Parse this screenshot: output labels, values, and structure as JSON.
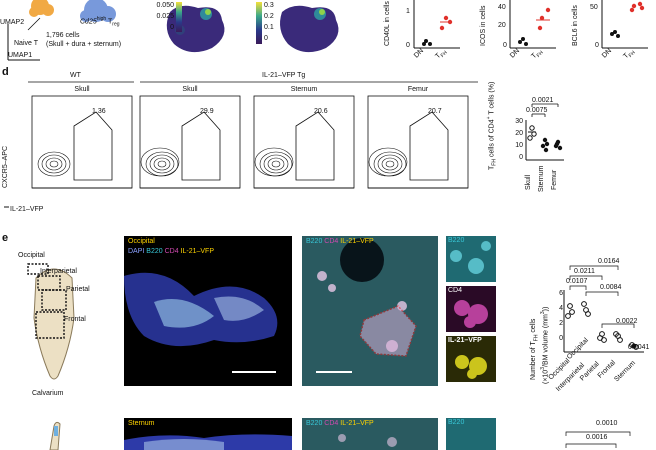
{
  "top": {
    "umap_labels": {
      "umap2": "UMAP2",
      "umap1": "UMAP1",
      "naive": "Naive T",
      "cd25": "Cd25",
      "cd25_sup": "high",
      "treg": " T",
      "treg_sub": "reg",
      "cells": "1,796 cells",
      "tissues": "(Skull + dura + sternum)"
    },
    "scale1": [
      "0.050",
      "0.025",
      "0"
    ],
    "scale2": [
      "0.3",
      "0.2",
      "0.1",
      "0"
    ],
    "dot_plots": [
      {
        "ylabel": "CD40L in cells",
        "yticks": [
          "1",
          "0"
        ],
        "xticks": [
          "DN",
          "T"
        ],
        "xsub": "FH"
      },
      {
        "ylabel": "ICOS in cells",
        "yticks": [
          "40",
          "20",
          "0"
        ],
        "xticks": [
          "DN",
          "T"
        ],
        "xsub": "FH"
      },
      {
        "ylabel": "BCL6 in cells",
        "yticks": [
          "50",
          "0"
        ],
        "xticks": [
          "DN",
          "T"
        ],
        "xsub": "FH"
      }
    ]
  },
  "d": {
    "letter": "d",
    "wt": "WT",
    "tg": "IL-21–VFP Tg",
    "ylabel": "CXCR5–APC",
    "xlabel": "IL-21–VFP",
    "panels": [
      {
        "title": "Skull",
        "pct": "1.36"
      },
      {
        "title": "Skull",
        "pct": "29.9"
      },
      {
        "title": "Sternum",
        "pct": "20.6"
      },
      {
        "title": "Femur",
        "pct": "20.7"
      }
    ],
    "yticks": [
      "10",
      "10",
      "10",
      "10",
      "10",
      "0",
      "−10"
    ],
    "ysup": [
      "7",
      "6",
      "5",
      "4",
      "3",
      "",
      "4"
    ],
    "xticks": [
      "−10",
      "0",
      "10",
      "10",
      "10",
      "10",
      "10"
    ],
    "xsup": [
      "4",
      "",
      "4",
      "5",
      "6",
      "7"
    ],
    "stats": {
      "ylabel": "T",
      "ylabel_sub": "FH",
      "ylabel_rest": " cells of CD4",
      "ylabel_sup": "+",
      "ylabel_end": " T cells (%)",
      "yticks": [
        "30",
        "20",
        "10",
        "0"
      ],
      "pvals": [
        "0.0021",
        "0.0075"
      ],
      "categories": [
        "Skull",
        "Sternum",
        "Femur"
      ]
    }
  },
  "e": {
    "letter": "e",
    "skull_labels": [
      "Occipital",
      "Interparietal",
      "Parietal",
      "Frontal",
      "Calvarium"
    ],
    "micro1": {
      "title": "Occipital",
      "channels": [
        "DAPI",
        " B220",
        " CD4",
        " IL-21–VFP"
      ]
    },
    "micro2": {
      "channels": [
        "B220",
        " CD4",
        " IL-21–VFP"
      ]
    },
    "side_panels": [
      "B220",
      "CD4",
      "IL-21–VFP"
    ],
    "stats": {
      "ylabel1": "Number of T",
      "ylabel1_sub": "FH",
      "ylabel1_end": " cells",
      "ylabel2": "(×10",
      "ylabel2_sup": "3",
      "ylabel2_mid": "/BM volume (mm",
      "ylabel2_sup2": "3",
      "ylabel2_end": "))",
      "yticks": [
        "6",
        "4",
        "2",
        "0"
      ],
      "pvals": [
        "0.0164",
        "0.0211",
        "0.0107",
        "0.0084",
        "0.0022",
        "0.0041"
      ],
      "categories": [
        "Occipital",
        "Interparietal",
        "Parietal",
        "Frontal",
        "Sternum"
      ]
    }
  },
  "bottom": {
    "micro_title": "Sternum",
    "channels": [
      "B220",
      " CD4",
      " IL-21–VFP"
    ],
    "side": "B220",
    "pvals": [
      "0.0010",
      "0.0016"
    ]
  },
  "colors": {
    "red": "#e0302a",
    "blue_dark": "#1a1a5e",
    "yellow": "#ffd400",
    "magenta": "#d04ab0",
    "cyan": "#38c8d8"
  }
}
